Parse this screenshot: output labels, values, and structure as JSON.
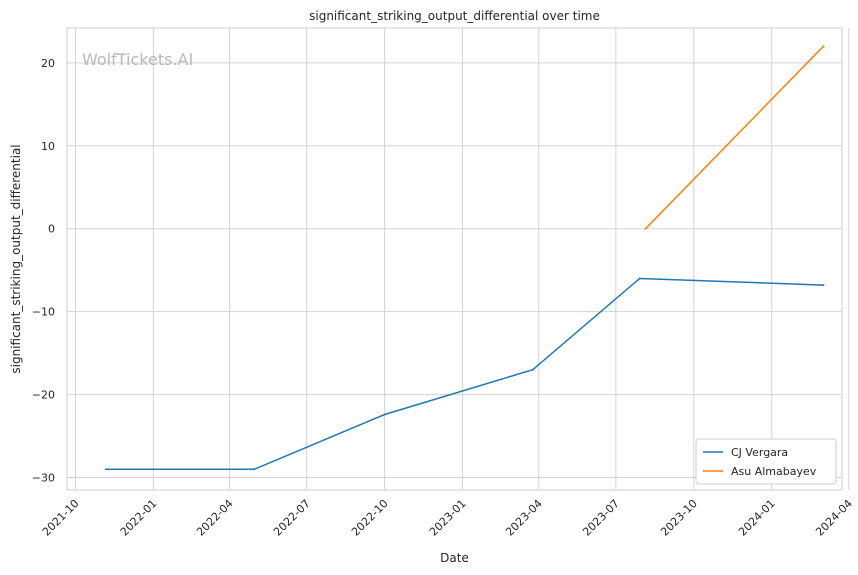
{
  "chart_data": {
    "type": "line",
    "title": "significant_striking_output_differential over time",
    "xlabel": "Date",
    "ylabel": "significant_striking_output_differential",
    "watermark": "WolfTickets.AI",
    "x_axis_kind": "date",
    "xlim": [
      "2021-09-21",
      "2024-03-24"
    ],
    "ylim": [
      -31.5,
      24.2
    ],
    "x_ticks": [
      "2021-10",
      "2022-01",
      "2022-04",
      "2022-07",
      "2022-10",
      "2023-01",
      "2023-04",
      "2023-07",
      "2023-10",
      "2024-01",
      "2024-04"
    ],
    "y_ticks": [
      -30,
      -20,
      -10,
      0,
      10,
      20
    ],
    "y_tick_labels": [
      "−30",
      "−20",
      "−10",
      "0",
      "10",
      "20"
    ],
    "grid": true,
    "legend_position": "bottom-right",
    "series": [
      {
        "name": "CJ Vergara",
        "color": "#1f77b4",
        "points": [
          {
            "x": "2021-11-06",
            "y": -29.0
          },
          {
            "x": "2022-04-30",
            "y": -29.0
          },
          {
            "x": "2022-10-01",
            "y": -22.4
          },
          {
            "x": "2023-03-25",
            "y": -17.0
          },
          {
            "x": "2023-07-29",
            "y": -6.0
          },
          {
            "x": "2024-03-02",
            "y": -6.8
          }
        ]
      },
      {
        "name": "Asu Almabayev",
        "color": "#ff7f0e",
        "points": [
          {
            "x": "2023-08-05",
            "y": 0.0
          },
          {
            "x": "2024-03-02",
            "y": 22.0
          }
        ]
      }
    ]
  }
}
